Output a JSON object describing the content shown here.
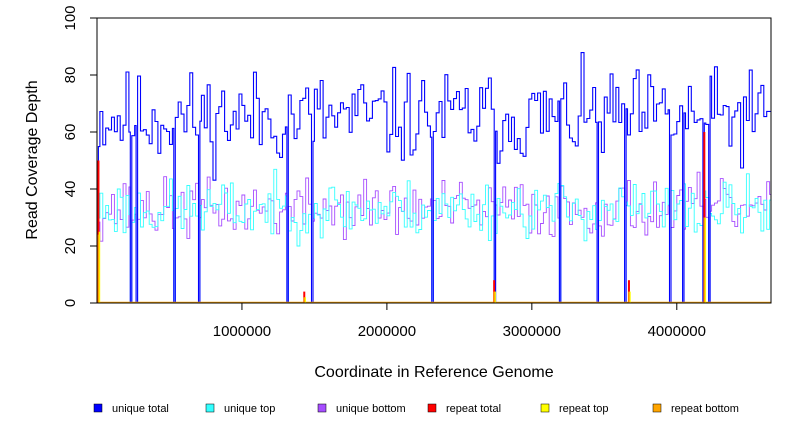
{
  "chart_data": {
    "type": "line",
    "title": "",
    "xlabel": "Coordinate in Reference Genome",
    "ylabel": "Read Coverage Depth",
    "xlim": [
      0,
      4650000
    ],
    "ylim": [
      0,
      100
    ],
    "x_ticks": [
      1000000,
      2000000,
      3000000,
      4000000
    ],
    "x_tick_labels": [
      "1000000",
      "2000000",
      "3000000",
      "4000000"
    ],
    "y_ticks": [
      0,
      20,
      40,
      60,
      80,
      100
    ],
    "y_tick_labels": [
      "0",
      "20",
      "40",
      "60",
      "80",
      "100"
    ],
    "grid": false,
    "legend_position": "bottom",
    "bin_size": 10000,
    "series": [
      {
        "name": "unique total",
        "color": "#0000ff",
        "baseline": 65,
        "amplitude": 16,
        "seed": 11
      },
      {
        "name": "unique top",
        "color": "#33ffff",
        "baseline": 33,
        "amplitude": 10,
        "seed": 23
      },
      {
        "name": "unique bottom",
        "color": "#a64dff",
        "baseline": 33,
        "amplitude": 10,
        "seed": 37
      },
      {
        "name": "repeat total",
        "color": "#ff0000",
        "baseline": 0,
        "amplitude": 0,
        "seed": 41
      },
      {
        "name": "repeat top",
        "color": "#ffff00",
        "baseline": 0,
        "amplitude": 0,
        "seed": 53
      },
      {
        "name": "repeat bottom",
        "color": "#ffa500",
        "baseline": 0,
        "amplitude": 0,
        "seed": 67
      }
    ],
    "drops": [
      0,
      230000,
      270000,
      530000,
      700000,
      1310000,
      1480000,
      2310000,
      2740000,
      3190000,
      3450000,
      3640000,
      3950000,
      4040000,
      4180000,
      4220000
    ],
    "repeat_spikes": [
      {
        "x": 10000,
        "total": 50,
        "top": 25,
        "bottom": 24
      },
      {
        "x": 1430000,
        "total": 4,
        "top": 2,
        "bottom": 2
      },
      {
        "x": 2740000,
        "total": 8,
        "top": 4,
        "bottom": 4
      },
      {
        "x": 3670000,
        "total": 8,
        "top": 4,
        "bottom": 4
      },
      {
        "x": 4190000,
        "total": 60,
        "top": 30,
        "bottom": 30
      }
    ]
  }
}
